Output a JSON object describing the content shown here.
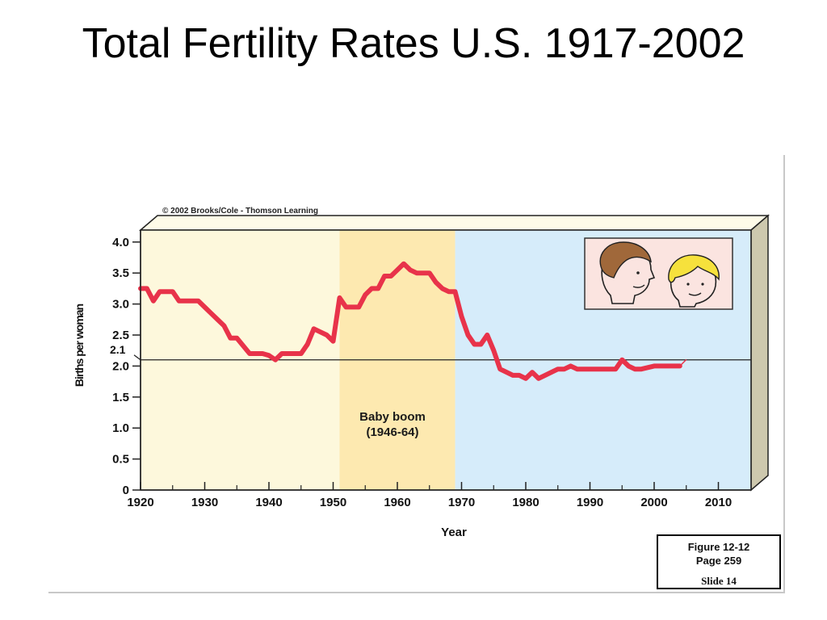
{
  "slide": {
    "title": "Total Fertility Rates U.S. 1917-2002"
  },
  "caption": {
    "figure": "Figure 12-12",
    "page": "Page 259",
    "slide": "Slide 14"
  },
  "chart_data": {
    "type": "line",
    "credit": "© 2002 Brooks/Cole - Thomson Learning",
    "xlabel": "Year",
    "ylabel": "Births per woman",
    "xlim": [
      1920,
      2015
    ],
    "ylim": [
      0,
      4.2
    ],
    "x_ticks": [
      1920,
      1930,
      1940,
      1950,
      1960,
      1970,
      1980,
      1990,
      2000,
      2010
    ],
    "y_ticks": [
      0,
      0.5,
      1.0,
      1.5,
      2.0,
      2.5,
      3.0,
      3.5,
      4.0
    ],
    "y_tick_labels": [
      "0",
      "0.5",
      "1.0",
      "1.5",
      "2.0",
      "2.5",
      "3.0",
      "3.5",
      "4.0"
    ],
    "reference_line": {
      "value": 2.1,
      "label": "2.1"
    },
    "regions": [
      {
        "from": 1920,
        "to": 1951,
        "color": "#fdf8dc"
      },
      {
        "from": 1951,
        "to": 1969,
        "color": "#fde9b0",
        "label_lines": [
          "Baby boom",
          "(1946-64)"
        ]
      },
      {
        "from": 1969,
        "to": 2015,
        "color": "#d6ecfa"
      }
    ],
    "series": [
      {
        "color": "#e8334a",
        "x": [
          1920,
          1921,
          1922,
          1923,
          1924,
          1925,
          1926,
          1928,
          1929,
          1931,
          1932,
          1933,
          1934,
          1935,
          1937,
          1939,
          1940,
          1941,
          1942,
          1944,
          1945,
          1946,
          1947,
          1948,
          1949,
          1950,
          1951,
          1952,
          1953,
          1954,
          1955,
          1956,
          1957,
          1958,
          1959,
          1960,
          1961,
          1962,
          1963,
          1964,
          1965,
          1966,
          1967,
          1968,
          1969,
          1970,
          1971,
          1972,
          1973,
          1974,
          1975,
          1976,
          1977,
          1978,
          1979,
          1980,
          1981,
          1982,
          1983,
          1984,
          1985,
          1986,
          1987,
          1988,
          1990,
          1992,
          1994,
          1995,
          1996,
          1997,
          1998,
          2000,
          2002,
          2004
        ],
        "y": [
          3.25,
          3.25,
          3.05,
          3.2,
          3.2,
          3.2,
          3.05,
          3.05,
          3.05,
          2.85,
          2.75,
          2.65,
          2.45,
          2.45,
          2.2,
          2.2,
          2.17,
          2.1,
          2.2,
          2.2,
          2.2,
          2.35,
          2.6,
          2.55,
          2.5,
          2.4,
          3.1,
          2.95,
          2.95,
          2.95,
          3.15,
          3.25,
          3.25,
          3.45,
          3.45,
          3.55,
          3.65,
          3.55,
          3.5,
          3.5,
          3.5,
          3.35,
          3.25,
          3.2,
          3.2,
          2.8,
          2.5,
          2.35,
          2.35,
          2.5,
          2.25,
          1.95,
          1.9,
          1.85,
          1.85,
          1.8,
          1.9,
          1.8,
          1.85,
          1.9,
          1.95,
          1.95,
          2.0,
          1.95,
          1.95,
          1.95,
          1.95,
          2.1,
          2.0,
          1.95,
          1.95,
          2.0,
          2.0,
          2.0
        ]
      }
    ]
  }
}
